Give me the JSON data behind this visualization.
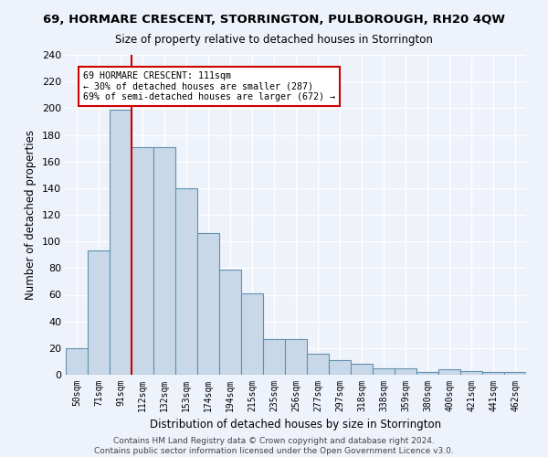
{
  "title": "69, HORMARE CRESCENT, STORRINGTON, PULBOROUGH, RH20 4QW",
  "subtitle": "Size of property relative to detached houses in Storrington",
  "xlabel": "Distribution of detached houses by size in Storrington",
  "ylabel": "Number of detached properties",
  "categories": [
    "50sqm",
    "71sqm",
    "91sqm",
    "112sqm",
    "132sqm",
    "153sqm",
    "174sqm",
    "194sqm",
    "215sqm",
    "235sqm",
    "256sqm",
    "277sqm",
    "297sqm",
    "318sqm",
    "338sqm",
    "359sqm",
    "380sqm",
    "400sqm",
    "421sqm",
    "441sqm",
    "462sqm"
  ],
  "values": [
    20,
    93,
    199,
    171,
    171,
    140,
    106,
    79,
    61,
    27,
    27,
    16,
    11,
    8,
    5,
    5,
    2,
    4,
    3,
    2,
    2
  ],
  "bar_color": "#c8d8e8",
  "bar_edge_color": "#6090b0",
  "marker_index": 3,
  "marker_color": "#cc0000",
  "annotation_line1": "69 HORMARE CRESCENT: 111sqm",
  "annotation_line2": "← 30% of detached houses are smaller (287)",
  "annotation_line3": "69% of semi-detached houses are larger (672) →",
  "annotation_box_color": "#ffffff",
  "annotation_box_edge": "#cc0000",
  "ylim": [
    0,
    240
  ],
  "yticks": [
    0,
    20,
    40,
    60,
    80,
    100,
    120,
    140,
    160,
    180,
    200,
    220,
    240
  ],
  "background_color": "#eef2fb",
  "grid_color": "#ffffff",
  "footer1": "Contains HM Land Registry data © Crown copyright and database right 2024.",
  "footer2": "Contains public sector information licensed under the Open Government Licence v3.0."
}
